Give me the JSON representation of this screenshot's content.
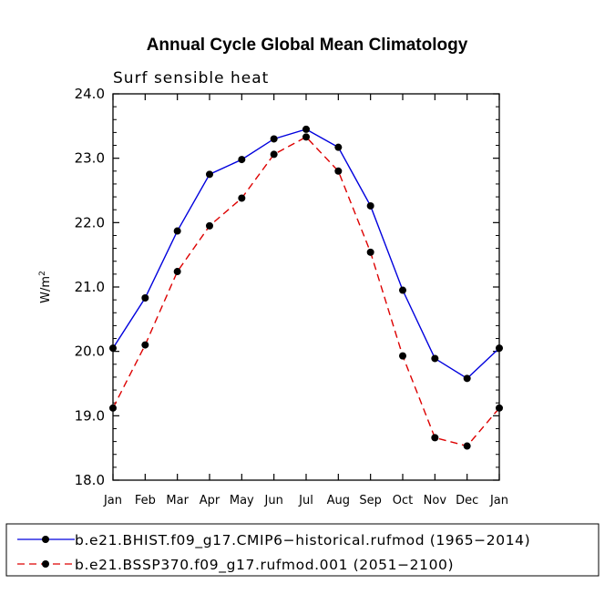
{
  "chart_data": {
    "type": "line",
    "title": "Annual Cycle Global Mean Climatology",
    "subtitle": "Surf sensible heat",
    "ylabel": "W/m2",
    "ylabel_base": "W/m",
    "ylabel_sup": "2",
    "xlabel": "",
    "ylim": [
      18.0,
      24.0
    ],
    "yticks": [
      "18.0",
      "19.0",
      "20.0",
      "21.0",
      "22.0",
      "23.0",
      "24.0"
    ],
    "categories": [
      "Jan",
      "Feb",
      "Mar",
      "Apr",
      "May",
      "Jun",
      "Jul",
      "Aug",
      "Sep",
      "Oct",
      "Nov",
      "Dec",
      "Jan"
    ],
    "grid": false,
    "legend_position": "bottom",
    "series": [
      {
        "name": "b.e21.BHIST.f09_g17.CMIP6−historical.rufmod (1965−2014)",
        "color": "#0000dd",
        "dash": "solid",
        "values": [
          20.05,
          20.83,
          21.87,
          22.75,
          22.98,
          23.3,
          23.45,
          23.17,
          22.26,
          20.95,
          19.89,
          19.58,
          20.05
        ]
      },
      {
        "name": "b.e21.BSSP370.f09_g17.rufmod.001 (2051−2100)",
        "color": "#dd0000",
        "dash": "dashed",
        "values": [
          19.12,
          20.1,
          21.24,
          21.95,
          22.38,
          23.06,
          23.33,
          22.8,
          21.54,
          19.93,
          18.66,
          18.53,
          19.12
        ]
      }
    ]
  }
}
